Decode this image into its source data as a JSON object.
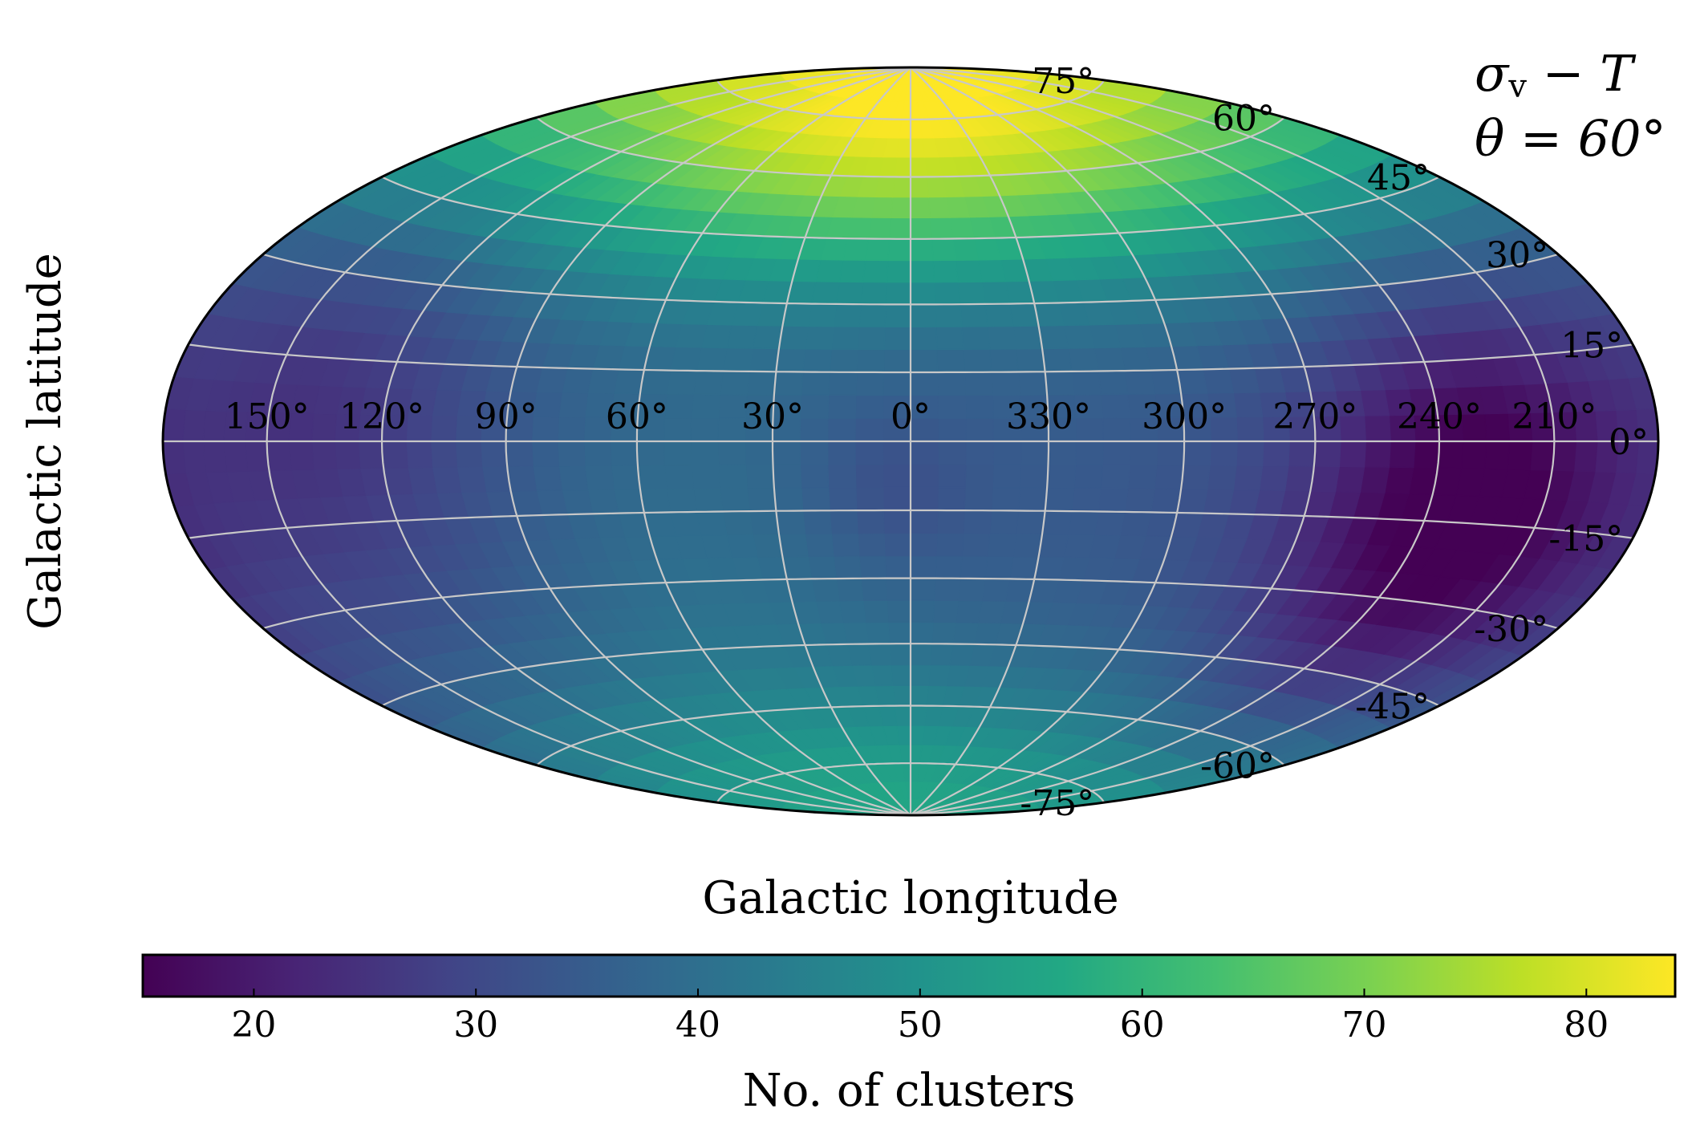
{
  "chart_data": {
    "type": "heatmap",
    "projection": "hammer-aitoff",
    "annotation": {
      "line1_symbol": "σ",
      "line1_sub": "v",
      "line1_rest": " − T",
      "line2": "θ = 60°"
    },
    "xlabel": "Galactic longitude",
    "ylabel": "Galactic latitude",
    "longitude_tick_labels": [
      "150°",
      "120°",
      "90°",
      "60°",
      "30°",
      "0°",
      "330°",
      "300°",
      "270°",
      "240°",
      "210°"
    ],
    "longitude_tick_values": [
      150,
      120,
      90,
      60,
      30,
      0,
      -30,
      -60,
      -90,
      -120,
      -150
    ],
    "latitude_tick_labels": [
      "75°",
      "60°",
      "45°",
      "30°",
      "15°",
      "0°",
      "-15°",
      "-30°",
      "-45°",
      "-60°",
      "-75°"
    ],
    "latitude_tick_values": [
      75,
      60,
      45,
      30,
      15,
      0,
      -15,
      -30,
      -45,
      -60,
      -75
    ],
    "grid": true,
    "colorbar": {
      "label": "No. of clusters",
      "range": [
        15,
        84
      ],
      "tick_values": [
        20,
        30,
        40,
        50,
        60,
        70,
        80
      ],
      "tick_labels": [
        "20",
        "30",
        "40",
        "50",
        "60",
        "70",
        "80"
      ],
      "colormap": "viridis",
      "orientation": "horizontal",
      "placement": "bottom"
    },
    "field_description_values": {
      "north_pole_peak": 84,
      "north_latitude_band_60": 68,
      "south_pole_cap": 58,
      "equator_typical": 35,
      "minimum_region_lon_lat": [
        235,
        -15
      ],
      "minimum_value": 15
    }
  }
}
